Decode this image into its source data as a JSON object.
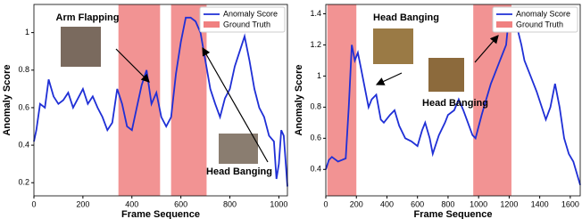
{
  "chart_data": [
    {
      "type": "line",
      "x_label": "Frame Sequence",
      "y_label": "Anomaly Score",
      "xlim": [
        0,
        1035
      ],
      "xticks": [
        0,
        200,
        400,
        600,
        800,
        1000
      ],
      "ylim": [
        0.13,
        1.15
      ],
      "yticks": [
        0.2,
        0.4,
        0.6,
        0.8,
        1.0
      ],
      "legend": "upper right",
      "regions": {
        "name": "Ground Truth",
        "color": "#f08080",
        "spans": [
          [
            345,
            515
          ],
          [
            560,
            705
          ]
        ]
      },
      "annotations": [
        "Arm Flapping",
        "Head Banging"
      ],
      "series": [
        {
          "name": "Anomaly Score",
          "color": "#1f2fd6",
          "x": [
            0,
            10,
            25,
            45,
            60,
            80,
            100,
            120,
            140,
            160,
            180,
            200,
            220,
            240,
            260,
            280,
            300,
            320,
            340,
            360,
            380,
            400,
            420,
            440,
            460,
            480,
            500,
            520,
            540,
            560,
            580,
            600,
            620,
            640,
            660,
            680,
            700,
            720,
            740,
            760,
            780,
            800,
            820,
            840,
            860,
            880,
            900,
            920,
            940,
            960,
            980,
            990,
            1000,
            1010,
            1020,
            1035
          ],
          "values": [
            0.42,
            0.48,
            0.62,
            0.6,
            0.75,
            0.66,
            0.62,
            0.64,
            0.68,
            0.6,
            0.65,
            0.7,
            0.62,
            0.66,
            0.6,
            0.55,
            0.48,
            0.52,
            0.7,
            0.62,
            0.5,
            0.48,
            0.6,
            0.72,
            0.8,
            0.62,
            0.68,
            0.55,
            0.5,
            0.55,
            0.78,
            0.95,
            1.08,
            1.08,
            1.06,
            1.0,
            0.85,
            0.7,
            0.62,
            0.55,
            0.65,
            0.7,
            0.82,
            0.9,
            0.98,
            0.85,
            0.7,
            0.6,
            0.55,
            0.45,
            0.42,
            0.22,
            0.3,
            0.48,
            0.45,
            0.18
          ]
        }
      ]
    },
    {
      "type": "line",
      "x_label": "Frame Sequence",
      "y_label": "Anomaly Score",
      "xlim": [
        0,
        1665
      ],
      "xticks": [
        0,
        200,
        400,
        600,
        800,
        1000,
        1200,
        1400,
        1600
      ],
      "ylim": [
        0.23,
        1.46
      ],
      "yticks": [
        0.4,
        0.6,
        0.8,
        1.0,
        1.2,
        1.4
      ],
      "legend": "upper right",
      "regions": {
        "name": "Ground Truth",
        "color": "#f08080",
        "spans": [
          [
            10,
            200
          ],
          [
            965,
            1215
          ]
        ]
      },
      "annotations": [
        "Head Banging",
        "Head Banging"
      ],
      "series": [
        {
          "name": "Anomaly Score",
          "color": "#1f2fd6",
          "x": [
            0,
            20,
            40,
            80,
            130,
            150,
            170,
            190,
            210,
            230,
            260,
            280,
            300,
            330,
            360,
            380,
            420,
            450,
            480,
            520,
            560,
            600,
            630,
            650,
            680,
            700,
            740,
            780,
            800,
            840,
            870,
            900,
            930,
            960,
            980,
            1020,
            1050,
            1080,
            1100,
            1140,
            1180,
            1200,
            1230,
            1250,
            1280,
            1300,
            1340,
            1380,
            1420,
            1440,
            1470,
            1500,
            1530,
            1560,
            1590,
            1620,
            1665
          ],
          "values": [
            0.4,
            0.46,
            0.48,
            0.45,
            0.47,
            0.8,
            1.2,
            1.1,
            1.15,
            1.05,
            0.9,
            0.8,
            0.85,
            0.88,
            0.72,
            0.7,
            0.75,
            0.78,
            0.68,
            0.6,
            0.58,
            0.55,
            0.65,
            0.7,
            0.6,
            0.5,
            0.62,
            0.7,
            0.75,
            0.78,
            0.85,
            0.78,
            0.7,
            0.62,
            0.6,
            0.75,
            0.85,
            0.95,
            1.0,
            1.1,
            1.2,
            1.4,
            1.36,
            1.32,
            1.2,
            1.1,
            1.0,
            0.9,
            0.78,
            0.72,
            0.8,
            0.95,
            0.8,
            0.6,
            0.5,
            0.45,
            0.3
          ]
        }
      ]
    }
  ]
}
